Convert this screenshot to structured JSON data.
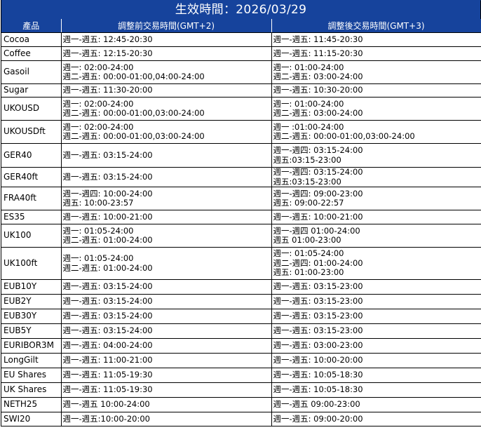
{
  "title": "生效時間：2026/03/29",
  "header": {
    "product": "產品",
    "before": "調整前交易時間(GMT+2)",
    "after": "調整後交易時間(GMT+3)"
  },
  "rows": [
    {
      "product": "Cocoa",
      "before": [
        "週一-週五: 12:45-20:30"
      ],
      "after": [
        "週一-週五: 11:45-20:30"
      ]
    },
    {
      "product": "Coffee",
      "before": [
        "週一-週五: 12:15-20:30"
      ],
      "after": [
        "週一-週五: 11:15-20:30"
      ]
    },
    {
      "product": "Gasoil",
      "before": [
        "週一: 02:00-24:00",
        "週二-週五: 00:00-01:00,04:00-24:00"
      ],
      "after": [
        "週一: 01:00-24:00",
        "週二-週五: 03:00-24:00"
      ]
    },
    {
      "product": "Sugar",
      "before": [
        "週一-週五: 11:30-20:00"
      ],
      "after": [
        "週一-週五: 10:30-20:00"
      ]
    },
    {
      "product": "UKOUSD",
      "before": [
        "週一: 02:00-24:00",
        "週二-週五:  00:00-01:00,03:00-24:00"
      ],
      "after": [
        "週一: 01:00-24:00",
        "週二-週五: 03:00-24:00"
      ]
    },
    {
      "product": "UKOUSDft",
      "before": [
        "週一: 02:00-24:00",
        "週二-週五:  00:00-01:00,03:00-24:00"
      ],
      "after": [
        "週一 :01:00-24:00",
        "週二-週五: 00:00-01:00,03:00-24:00"
      ]
    },
    {
      "product": "GER40",
      "before": [
        "週一-週五: 03:15-24:00"
      ],
      "after": [
        "週一-週四: 03:15-24:00",
        "週五:03:15-23:00"
      ]
    },
    {
      "product": "GER40ft",
      "before": [
        "週一-週五: 03:15-24:00"
      ],
      "after": [
        "週一-週四: 03:15-24:00",
        "週五:03:15-23:00"
      ]
    },
    {
      "product": "FRA40ft",
      "before": [
        "週一-週四: 10:00-24:00",
        "週五: 10:00-23:57"
      ],
      "after": [
        "週一-週四: 09:00-23:00",
        "週五: 09:00-22:57"
      ]
    },
    {
      "product": "ES35",
      "before": [
        "週一-週五: 10:00-21:00"
      ],
      "after": [
        "週一-週五: 10:00-21:00"
      ]
    },
    {
      "product": "UK100",
      "before": [
        "週一: 01:05-24:00",
        "週二-週五:  01:00-24:00"
      ],
      "after": [
        "週一-週四 01:00-24:00",
        "週五 01:00-23:00"
      ]
    },
    {
      "product": "UK100ft",
      "before": [
        "週一: 01:05-24:00",
        "週二-週五:  01:00-24:00"
      ],
      "after": [
        "週一: 01:05-24:00",
        "週二-週四: 01:00-24:00",
        "週五: 01:00-23:00"
      ]
    },
    {
      "product": "EUB10Y",
      "before": [
        "週一-週五: 03:15-24:00"
      ],
      "after": [
        "週一-週五: 03:15-23:00"
      ]
    },
    {
      "product": "EUB2Y",
      "before": [
        "週一-週五: 03:15-24:00"
      ],
      "after": [
        "週一-週五: 03:15-23:00"
      ]
    },
    {
      "product": "EUB30Y",
      "before": [
        "週一-週五: 03:15-24:00"
      ],
      "after": [
        "週一-週五: 03:15-23:00"
      ]
    },
    {
      "product": "EUB5Y",
      "before": [
        "週一-週五: 03:15-24:00"
      ],
      "after": [
        "週一-週五: 03:15-23:00"
      ]
    },
    {
      "product": "EURIBOR3M",
      "before": [
        "週一-週五: 04:00-24:00"
      ],
      "after": [
        "週一-週五: 03:00-23:00"
      ]
    },
    {
      "product": "LongGilt",
      "before": [
        "週一-週五: 11:00-21:00"
      ],
      "after": [
        "週一-週五: 10:00-20:00"
      ]
    },
    {
      "product": "EU Shares",
      "before": [
        "週一-週五: 11:05-19:30"
      ],
      "after": [
        "週一-週五: 10:05-18:30"
      ]
    },
    {
      "product": "UK Shares",
      "before": [
        "週一-週五: 11:05-19:30"
      ],
      "after": [
        "週一-週五: 10:05-18:30"
      ]
    },
    {
      "product": "NETH25",
      "before": [
        "週一-週五 10:00-24:00"
      ],
      "after": [
        "週一-週五 09:00-23:00"
      ]
    },
    {
      "product": "SWI20",
      "before": [
        "週一-週五:10:00-20:00"
      ],
      "after": [
        "週一-週五: 09:00-20:00"
      ]
    }
  ]
}
